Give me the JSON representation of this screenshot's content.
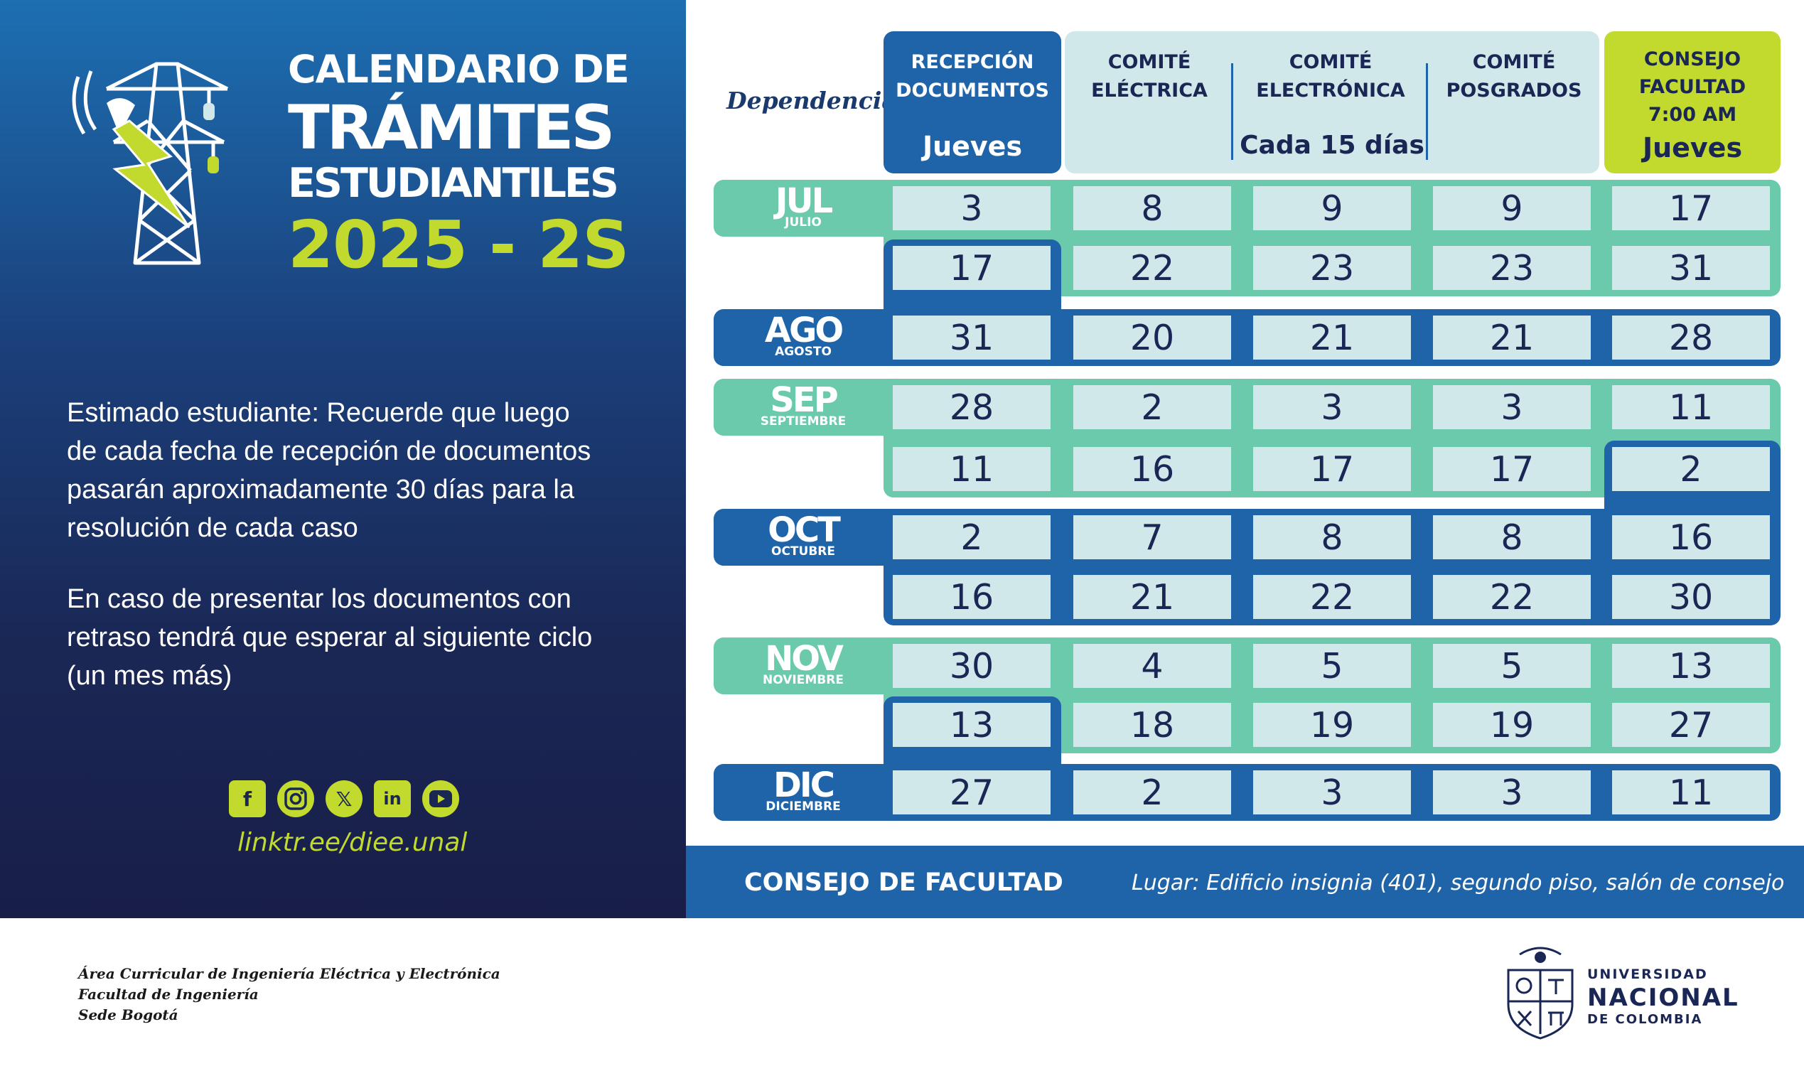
{
  "title": {
    "line1": "CALENDARIO DE",
    "line2": "TRÁMITES",
    "line3": "ESTUDIANTILES",
    "line4": "2025 - 2S"
  },
  "notes": {
    "p1_lines": [
      "Estimado estudiante: Recuerde que luego",
      "de cada fecha de recepción de documentos",
      "pasarán aproximadamente 30 días para la",
      "resolución de cada caso"
    ],
    "p2_lines": [
      "En caso de presentar los documentos con",
      "retraso tendrá que esperar al siguiente ciclo",
      "(un mes más)"
    ]
  },
  "social": {
    "icons": [
      "facebook-icon",
      "instagram-icon",
      "x-icon",
      "linkedin-icon",
      "youtube-icon"
    ],
    "link": "linktr.ee/diee.unal"
  },
  "header": {
    "dependencia": "Dependencia",
    "recepcion": {
      "line1": "RECEPCIÓN",
      "line2": "DOCUMENTOS",
      "day": "Jueves"
    },
    "electrica": {
      "line1": "COMITÉ",
      "line2": "ELÉCTRICA"
    },
    "electronica": {
      "line1": "COMITÉ",
      "line2": "ELECTRÓNICA"
    },
    "posgrados": {
      "line1": "COMITÉ",
      "line2": "POSGRADOS"
    },
    "comites_freq": "Cada 15 días",
    "consejo": {
      "line1": "CONSEJO",
      "line2": "FACULTAD",
      "line3": "7:00 AM",
      "day": "Jueves"
    }
  },
  "months": [
    {
      "abbr": "JUL",
      "full": "JULIO"
    },
    {
      "abbr": "AGO",
      "full": "AGOSTO"
    },
    {
      "abbr": "SEP",
      "full": "SEPTIEMBRE"
    },
    {
      "abbr": "OCT",
      "full": "OCTUBRE"
    },
    {
      "abbr": "NOV",
      "full": "NOVIEMBRE"
    },
    {
      "abbr": "DIC",
      "full": "DICIEMBRE"
    }
  ],
  "rows": [
    [
      "3",
      "8",
      "9",
      "9",
      "17"
    ],
    [
      "17",
      "22",
      "23",
      "23",
      "31"
    ],
    [
      "31",
      "20",
      "21",
      "21",
      "28"
    ],
    [
      "28",
      "2",
      "3",
      "3",
      "11"
    ],
    [
      "11",
      "16",
      "17",
      "17",
      "2"
    ],
    [
      "2",
      "7",
      "8",
      "8",
      "16"
    ],
    [
      "16",
      "21",
      "22",
      "22",
      "30"
    ],
    [
      "30",
      "4",
      "5",
      "5",
      "13"
    ],
    [
      "13",
      "18",
      "19",
      "19",
      "27"
    ],
    [
      "27",
      "2",
      "3",
      "3",
      "11"
    ]
  ],
  "footer": {
    "title": "CONSEJO DE FACULTAD",
    "place": "Lugar: Edificio insignia (401), segundo piso, salón de consejo"
  },
  "credits": [
    "Área Curricular de Ingeniería Eléctrica y Electrónica",
    "Facultad de Ingeniería",
    "Sede Bogotá"
  ],
  "university": {
    "line1": "UNIVERSIDAD",
    "line2": "NACIONAL",
    "line3": "DE COLOMBIA"
  },
  "colors": {
    "navy": "#1a2755",
    "blue": "#1f64a8",
    "teal": "#6bc9ac",
    "light": "#d0e8ea",
    "lime": "#c2d92e"
  }
}
